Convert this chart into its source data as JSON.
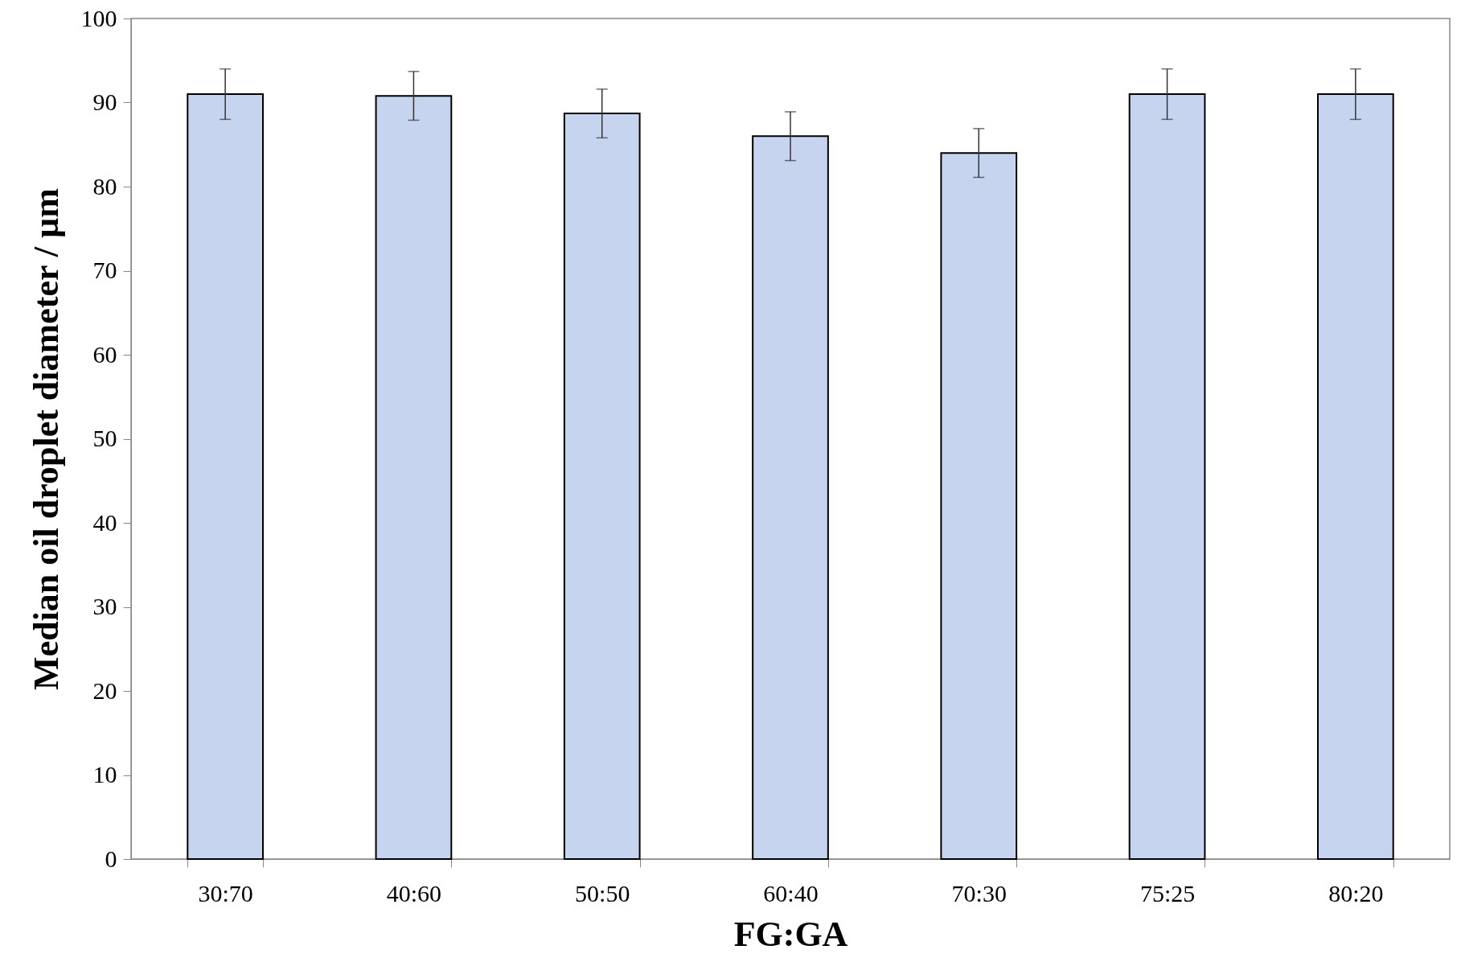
{
  "chart_data": {
    "type": "bar",
    "xlabel": "FG:GA",
    "ylabel": "Median oil droplet diameter / µm",
    "categories": [
      "30:70",
      "40:60",
      "50:50",
      "60:40",
      "70:30",
      "75:25",
      "80:20"
    ],
    "values": [
      91.0,
      90.8,
      88.7,
      86.0,
      84.0,
      91.0,
      91.0
    ],
    "errors": [
      3,
      2.9,
      2.9,
      2.9,
      2.9,
      3,
      3
    ],
    "color": "#c6d4ef",
    "ylim": [
      0,
      100
    ],
    "yticks": [
      0,
      10,
      20,
      30,
      40,
      50,
      60,
      70,
      80,
      90,
      100
    ],
    "grid": false
  }
}
